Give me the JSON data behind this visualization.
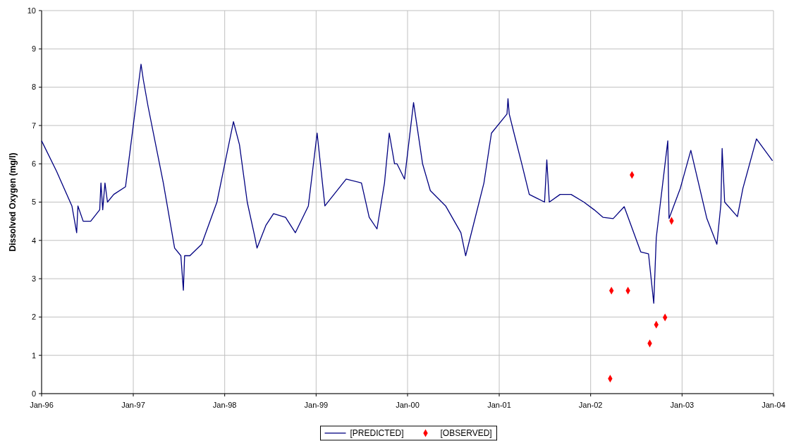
{
  "chart_data": {
    "type": "line",
    "ylabel": "Dissolved Oxygen (mg/l)",
    "xlim": [
      "1996-01-01",
      "2004-01-01"
    ],
    "xticks": [
      {
        "value": "1996-01-01",
        "label": "Jan-96"
      },
      {
        "value": "1997-01-01",
        "label": "Jan-97"
      },
      {
        "value": "1998-01-01",
        "label": "Jan-98"
      },
      {
        "value": "1999-01-01",
        "label": "Jan-99"
      },
      {
        "value": "2000-01-01",
        "label": "Jan-00"
      },
      {
        "value": "2001-01-01",
        "label": "Jan-01"
      },
      {
        "value": "2002-01-01",
        "label": "Jan-02"
      },
      {
        "value": "2003-01-01",
        "label": "Jan-03"
      },
      {
        "value": "2004-01-01",
        "label": "Jan-04"
      }
    ],
    "ylim": [
      0,
      10
    ],
    "yticks": [
      0,
      1,
      2,
      3,
      4,
      5,
      6,
      7,
      8,
      9,
      10
    ],
    "grid": true,
    "legend": "bottom",
    "series": [
      {
        "name": "[PREDICTED]",
        "type": "line",
        "color": "#000080",
        "marker": "none",
        "line_style": "solid",
        "x": [
          "1996-01-01",
          "1996-03-01",
          "1996-05-01",
          "1996-05-20",
          "1996-05-25",
          "1996-06-15",
          "1996-07-15",
          "1996-08-20",
          "1996-08-25",
          "1996-09-01",
          "1996-09-10",
          "1996-09-20",
          "1996-10-15",
          "1996-12-01",
          "1997-01-01",
          "1997-02-01",
          "1997-02-10",
          "1997-03-01",
          "1997-05-01",
          "1997-06-15",
          "1997-07-10",
          "1997-07-20",
          "1997-07-25",
          "1997-08-15",
          "1997-10-01",
          "1997-12-01",
          "1998-02-05",
          "1998-03-01",
          "1998-04-01",
          "1998-05-01",
          "1998-05-10",
          "1998-06-15",
          "1998-07-15",
          "1998-09-01",
          "1998-10-10",
          "1998-12-01",
          "1999-01-05",
          "1999-02-05",
          "1999-03-01",
          "1999-05-01",
          "1999-07-01",
          "1999-08-01",
          "1999-09-01",
          "1999-10-01",
          "1999-10-20",
          "1999-11-10",
          "1999-11-20",
          "1999-12-20",
          "2000-01-25",
          "2000-03-01",
          "2000-04-01",
          "2000-06-01",
          "2000-08-01",
          "2000-08-20",
          "2000-11-01",
          "2000-12-01",
          "2001-02-01",
          "2001-02-05",
          "2001-02-10",
          "2001-03-01",
          "2001-04-01",
          "2001-05-01",
          "2001-06-01",
          "2001-07-01",
          "2001-07-10",
          "2001-07-20",
          "2001-09-01",
          "2001-10-15",
          "2001-12-05",
          "2002-01-15",
          "2002-02-20",
          "2002-04-01",
          "2002-05-15",
          "2002-07-20",
          "2002-08-20",
          "2002-09-10",
          "2002-09-20",
          "2002-11-05",
          "2002-11-10",
          "2002-12-25",
          "2003-02-05",
          "2003-04-10",
          "2003-05-20",
          "2003-06-05",
          "2003-06-10",
          "2003-06-20",
          "2003-08-10",
          "2003-09-01",
          "2003-10-25",
          "2003-12-28"
        ],
        "values": [
          6.6,
          5.8,
          4.9,
          4.2,
          4.9,
          4.5,
          4.5,
          4.8,
          5.5,
          4.8,
          5.5,
          5.0,
          5.2,
          5.4,
          7.0,
          8.6,
          8.2,
          7.5,
          5.5,
          3.8,
          3.6,
          2.7,
          3.6,
          3.6,
          3.9,
          5.0,
          7.1,
          6.5,
          5.0,
          4.1,
          3.8,
          4.4,
          4.7,
          4.6,
          4.2,
          4.9,
          6.8,
          4.9,
          5.1,
          5.6,
          5.5,
          4.6,
          4.3,
          5.5,
          6.8,
          6.0,
          6.0,
          5.6,
          7.6,
          6.0,
          5.3,
          4.9,
          4.2,
          3.6,
          5.5,
          6.8,
          7.3,
          7.7,
          7.3,
          6.8,
          6.0,
          5.2,
          5.1,
          5.0,
          6.1,
          5.0,
          5.2,
          5.2,
          5.0,
          4.8,
          4.6,
          4.57,
          4.88,
          3.7,
          3.65,
          2.36,
          4.07,
          6.6,
          4.57,
          5.36,
          6.35,
          4.57,
          3.9,
          4.94,
          6.4,
          5.0,
          4.62,
          5.36,
          6.65,
          6.08
        ]
      },
      {
        "name": "[OBSERVED]",
        "type": "scatter",
        "color": "#ff0000",
        "marker": "diamond",
        "x": [
          "2002-03-20",
          "2002-03-25",
          "2002-05-30",
          "2002-06-15",
          "2002-08-25",
          "2002-09-20",
          "2002-10-25",
          "2002-11-20"
        ],
        "values": [
          0.39,
          2.69,
          2.69,
          5.71,
          1.31,
          1.8,
          1.99,
          4.51
        ]
      }
    ]
  }
}
